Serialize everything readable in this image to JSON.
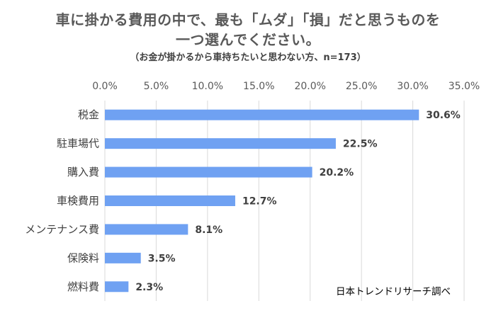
{
  "chart_data": {
    "type": "bar",
    "orientation": "horizontal",
    "title": "車に掛かる費用の中で、最も「ムダ」「損」だと思うものを一つ選んでください。",
    "title_lines": [
      "車に掛かる費用の中で、最も「ムダ」「損」だと思うものを",
      "一つ選んでください。"
    ],
    "subtitle": "（お金が掛かるから車持ちたいと思わない方、n=173）",
    "source": "日本トレンドリサーチ調べ",
    "categories": [
      "税金",
      "駐車場代",
      "購入費",
      "車検費用",
      "メンテナンス費",
      "保険料",
      "燃料費"
    ],
    "values": [
      30.6,
      22.5,
      20.2,
      12.7,
      8.1,
      3.5,
      2.3
    ],
    "value_labels": [
      "30.6%",
      "22.5%",
      "20.2%",
      "12.7%",
      "8.1%",
      "3.5%",
      "2.3%"
    ],
    "x_ticks": [
      "0.0%",
      "5.0%",
      "10.0%",
      "15.0%",
      "20.0%",
      "25.0%",
      "30.0%",
      "35.0%"
    ],
    "xlim": [
      0,
      35
    ],
    "x_axis_position": "top",
    "grid": true,
    "bar_color": "#6fa1f2",
    "grid_color": "#d9d9d9"
  }
}
